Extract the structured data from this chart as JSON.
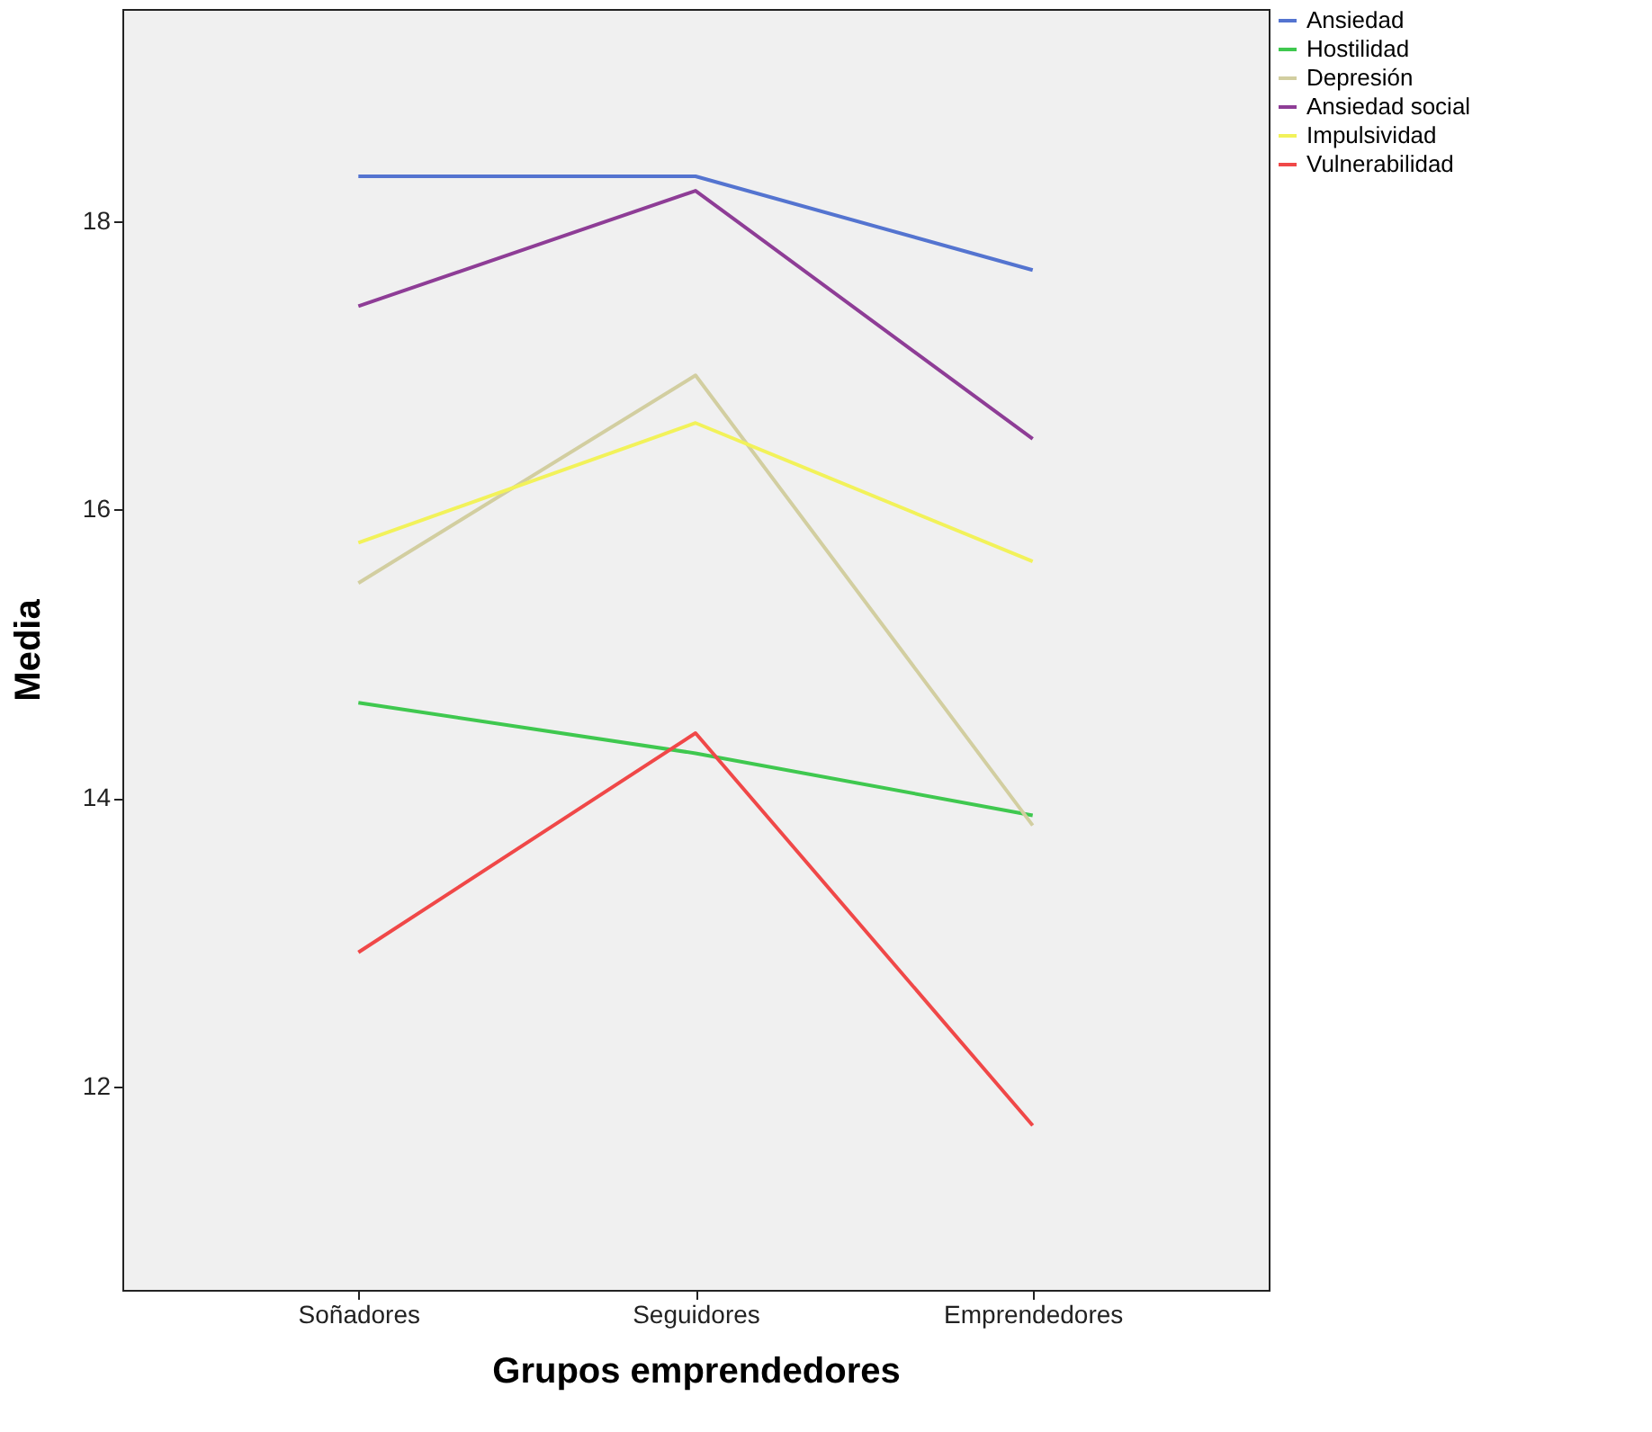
{
  "chart_data": {
    "type": "line",
    "xlabel": "Grupos emprendedores",
    "ylabel": "Media",
    "categories": [
      "Soñadores",
      "Seguidores",
      "Emprendedores"
    ],
    "ylim": [
      10.59,
      19.47
    ],
    "yticks": [
      12,
      14,
      16,
      18
    ],
    "grid": false,
    "legend": "top right",
    "marker": "none",
    "line_style": "solid",
    "series": [
      {
        "name": "Ansiedad",
        "color": "#5474d0",
        "values": [
          18.31,
          18.31,
          17.66
        ]
      },
      {
        "name": "Hostilidad",
        "color": "#3fc84f",
        "values": [
          14.66,
          14.31,
          13.88
        ]
      },
      {
        "name": "Depresión",
        "color": "#d2cea0",
        "values": [
          15.49,
          16.93,
          13.81
        ]
      },
      {
        "name": "Ansiedad social",
        "color": "#8e3d96",
        "values": [
          17.41,
          18.21,
          16.49
        ]
      },
      {
        "name": "Impulsividad",
        "color": "#f2f25a",
        "values": [
          15.77,
          16.6,
          15.64
        ]
      },
      {
        "name": "Vulnerabilidad",
        "color": "#f04848",
        "values": [
          12.93,
          14.45,
          11.73
        ]
      }
    ]
  }
}
